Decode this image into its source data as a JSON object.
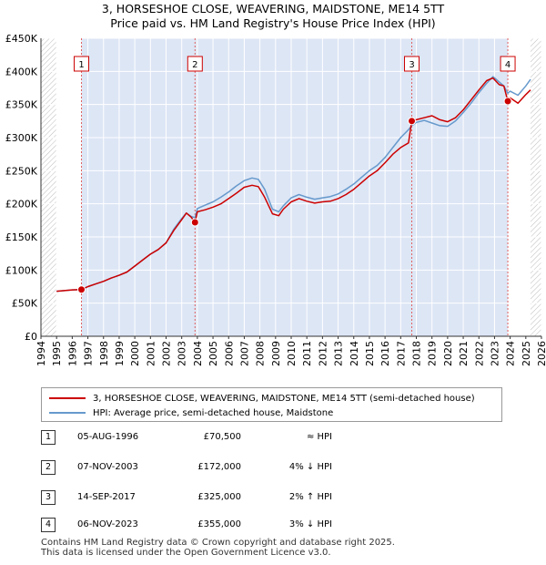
{
  "title_line1": "3, HORSESHOE CLOSE, WEAVERING, MAIDSTONE, ME14 5TT",
  "title_line2": "Price paid vs. HM Land Registry's House Price Index (HPI)",
  "legend": {
    "property": "3, HORSESHOE CLOSE, WEAVERING, MAIDSTONE, ME14 5TT (semi-detached house)",
    "hpi": "HPI: Average price, semi-detached house, Maidstone"
  },
  "colors": {
    "property": "#cc0000",
    "hpi": "#6699cc",
    "marker_line": "#e06060",
    "shade": "#dde6f5",
    "hatch": "#bbbbbb"
  },
  "transactions": [
    {
      "num": "1",
      "date": "05-AUG-1996",
      "price": "£70,500",
      "hpi": "≈ HPI"
    },
    {
      "num": "2",
      "date": "07-NOV-2003",
      "price": "£172,000",
      "hpi": "4% ↓ HPI"
    },
    {
      "num": "3",
      "date": "14-SEP-2017",
      "price": "£325,000",
      "hpi": "2% ↑ HPI"
    },
    {
      "num": "4",
      "date": "06-NOV-2023",
      "price": "£355,000",
      "hpi": "3% ↓ HPI"
    }
  ],
  "footer": {
    "line1": "Contains HM Land Registry data © Crown copyright and database right 2025.",
    "line2": "This data is licensed under the Open Government Licence v3.0."
  },
  "chart_data": {
    "type": "line",
    "title": "3, HORSESHOE CLOSE, WEAVERING, MAIDSTONE, ME14 5TT — Price paid vs. HM Land Registry's House Price Index (HPI)",
    "xlabel": "",
    "ylabel": "",
    "xlim": [
      1994,
      2026
    ],
    "ylim": [
      0,
      450000
    ],
    "grid": true,
    "x_ticks": [
      "1994",
      "1995",
      "1996",
      "1997",
      "1998",
      "1999",
      "2000",
      "2001",
      "2002",
      "2003",
      "2004",
      "2005",
      "2006",
      "2007",
      "2008",
      "2009",
      "2010",
      "2011",
      "2012",
      "2013",
      "2014",
      "2015",
      "2016",
      "2017",
      "2018",
      "2019",
      "2020",
      "2021",
      "2022",
      "2023",
      "2024",
      "2025",
      "2026"
    ],
    "y_ticks": [
      {
        "value": 0,
        "label": "£0"
      },
      {
        "value": 50000,
        "label": "£50K"
      },
      {
        "value": 100000,
        "label": "£100K"
      },
      {
        "value": 150000,
        "label": "£150K"
      },
      {
        "value": 200000,
        "label": "£200K"
      },
      {
        "value": 250000,
        "label": "£250K"
      },
      {
        "value": 300000,
        "label": "£300K"
      },
      {
        "value": 350000,
        "label": "£350K"
      },
      {
        "value": 400000,
        "label": "£400K"
      },
      {
        "value": 450000,
        "label": "£450K"
      }
    ],
    "data_range": [
      1995,
      2025.3
    ],
    "series": [
      {
        "name": "3, HORSESHOE CLOSE, WEAVERING, MAIDSTONE, ME14 5TT (semi-detached house)",
        "color": "#cc0000",
        "x": [
          1995.0,
          1995.5,
          1996.0,
          1996.59,
          1997.0,
          1997.5,
          1998.0,
          1998.5,
          1999.0,
          1999.5,
          2000.0,
          2000.5,
          2001.0,
          2001.5,
          2002.0,
          2002.5,
          2003.0,
          2003.3,
          2003.6,
          2003.85,
          2004.0,
          2004.5,
          2005.0,
          2005.5,
          2006.0,
          2006.5,
          2007.0,
          2007.5,
          2007.9,
          2008.3,
          2008.8,
          2009.2,
          2009.5,
          2010.0,
          2010.5,
          2011.0,
          2011.5,
          2012.0,
          2012.5,
          2013.0,
          2013.5,
          2014.0,
          2014.5,
          2015.0,
          2015.5,
          2016.0,
          2016.5,
          2017.0,
          2017.5,
          2017.71,
          2018.0,
          2018.5,
          2019.0,
          2019.5,
          2020.0,
          2020.5,
          2021.0,
          2021.5,
          2022.0,
          2022.5,
          2022.9,
          2023.3,
          2023.6,
          2023.85,
          2024.0,
          2024.5,
          2025.0,
          2025.3
        ],
        "values": [
          68000,
          69000,
          70000,
          70500,
          75000,
          79000,
          83000,
          88000,
          92000,
          97000,
          106000,
          115000,
          124000,
          131000,
          141000,
          160000,
          176000,
          186000,
          180000,
          172000,
          188000,
          191000,
          195000,
          200000,
          208000,
          216000,
          225000,
          228000,
          226000,
          210000,
          185000,
          182000,
          192000,
          203000,
          208000,
          204000,
          201000,
          203000,
          204000,
          208000,
          214000,
          222000,
          232000,
          242000,
          250000,
          262000,
          275000,
          285000,
          292000,
          325000,
          327000,
          330000,
          333000,
          327000,
          324000,
          330000,
          342000,
          357000,
          372000,
          386000,
          390000,
          380000,
          378000,
          355000,
          360000,
          352000,
          365000,
          372000
        ]
      },
      {
        "name": "HPI: Average price, semi-detached house, Maidstone",
        "color": "#6699cc",
        "x": [
          1995.0,
          1995.5,
          1996.0,
          1996.59,
          1997.0,
          1997.5,
          1998.0,
          1998.5,
          1999.0,
          1999.5,
          2000.0,
          2000.5,
          2001.0,
          2001.5,
          2002.0,
          2002.5,
          2003.0,
          2003.3,
          2003.6,
          2003.85,
          2004.0,
          2004.5,
          2005.0,
          2005.5,
          2006.0,
          2006.5,
          2007.0,
          2007.5,
          2007.9,
          2008.3,
          2008.8,
          2009.2,
          2009.5,
          2010.0,
          2010.5,
          2011.0,
          2011.5,
          2012.0,
          2012.5,
          2013.0,
          2013.5,
          2014.0,
          2014.5,
          2015.0,
          2015.5,
          2016.0,
          2016.5,
          2017.0,
          2017.5,
          2017.71,
          2018.0,
          2018.5,
          2019.0,
          2019.5,
          2020.0,
          2020.5,
          2021.0,
          2021.5,
          2022.0,
          2022.5,
          2022.9,
          2023.3,
          2023.6,
          2023.85,
          2024.0,
          2024.5,
          2025.0,
          2025.3
        ],
        "values": [
          68000,
          69000,
          70000,
          70500,
          75000,
          79000,
          83000,
          88000,
          92000,
          97000,
          106000,
          115000,
          124000,
          131000,
          141000,
          162000,
          178000,
          186000,
          181000,
          179000,
          193000,
          198000,
          203000,
          210000,
          218000,
          227000,
          235000,
          239000,
          237000,
          222000,
          192000,
          188000,
          197000,
          209000,
          214000,
          210000,
          207000,
          209000,
          211000,
          215000,
          222000,
          230000,
          240000,
          250000,
          258000,
          270000,
          285000,
          300000,
          312000,
          318000,
          323000,
          326000,
          322000,
          318000,
          317000,
          325000,
          338000,
          352000,
          368000,
          382000,
          392000,
          384000,
          378000,
          367000,
          370000,
          364000,
          378000,
          388000
        ]
      }
    ],
    "markers": [
      {
        "label": "1",
        "x": 1996.59,
        "value": 70500
      },
      {
        "label": "2",
        "x": 2003.85,
        "value": 172000
      },
      {
        "label": "3",
        "x": 2017.71,
        "value": 325000
      },
      {
        "label": "4",
        "x": 2023.85,
        "value": 355000
      }
    ]
  }
}
